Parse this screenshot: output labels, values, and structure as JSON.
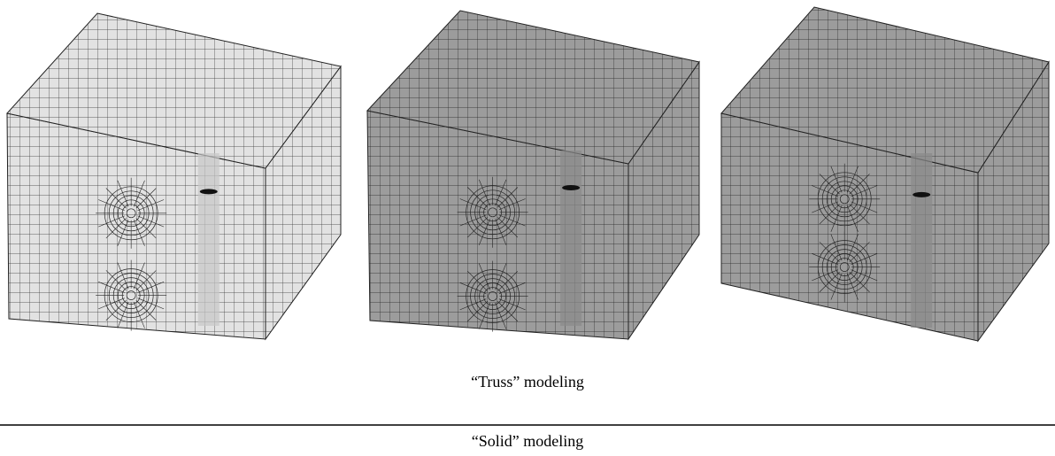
{
  "captions": [
    "“Truss” modeling",
    "“Solid” modeling"
  ]
}
